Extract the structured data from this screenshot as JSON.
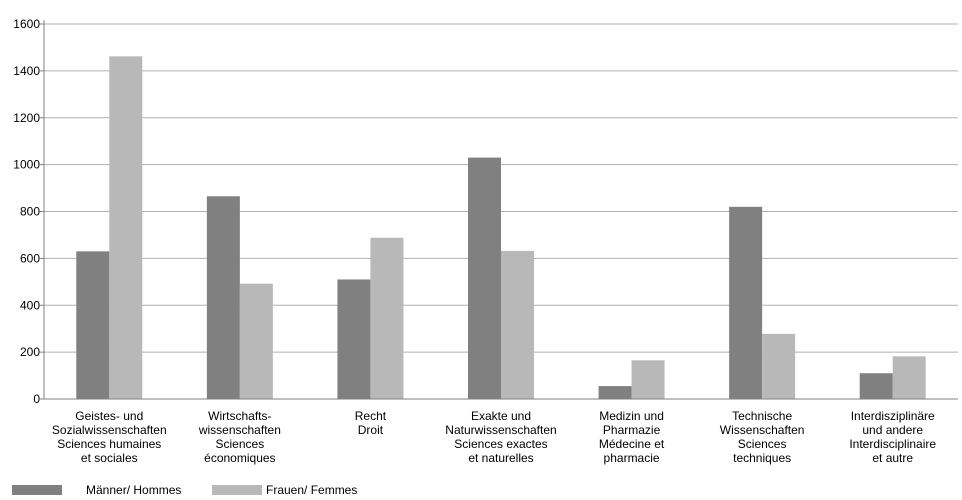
{
  "chart_data": {
    "type": "bar",
    "categories": [
      [
        "Geistes- und",
        "Sozialwissenschaften",
        "Sciences humaines",
        "et sociales"
      ],
      [
        "Wirtschafts-",
        "wissenschaften",
        "Sciences",
        "économiques"
      ],
      [
        "Recht",
        "Droit"
      ],
      [
        "Exakte und",
        "Naturwissenschaften",
        "Sciences exactes",
        "et naturelles"
      ],
      [
        "Medizin und",
        "Pharmazie",
        "Médecine et",
        "pharmacie"
      ],
      [
        "Technische",
        "Wissenschaften",
        "Sciences",
        "techniques"
      ],
      [
        "Interdisziplinäre",
        "und andere",
        "Interdisciplinaire",
        "et autre"
      ]
    ],
    "series": [
      {
        "name": "Männer/ Hommes",
        "color": "#808080",
        "values": [
          630,
          865,
          510,
          1030,
          55,
          820,
          110
        ]
      },
      {
        "name": "Frauen/ Femmes",
        "color": "#b8b8b8",
        "values": [
          1462,
          492,
          688,
          632,
          165,
          278,
          182
        ]
      }
    ],
    "ylim": [
      0,
      1600
    ],
    "yticks": [
      "0",
      "200",
      "400",
      "600",
      "800",
      "1000",
      "1200",
      "1400",
      "1600"
    ],
    "grid": true,
    "legend": "bottom-left"
  }
}
